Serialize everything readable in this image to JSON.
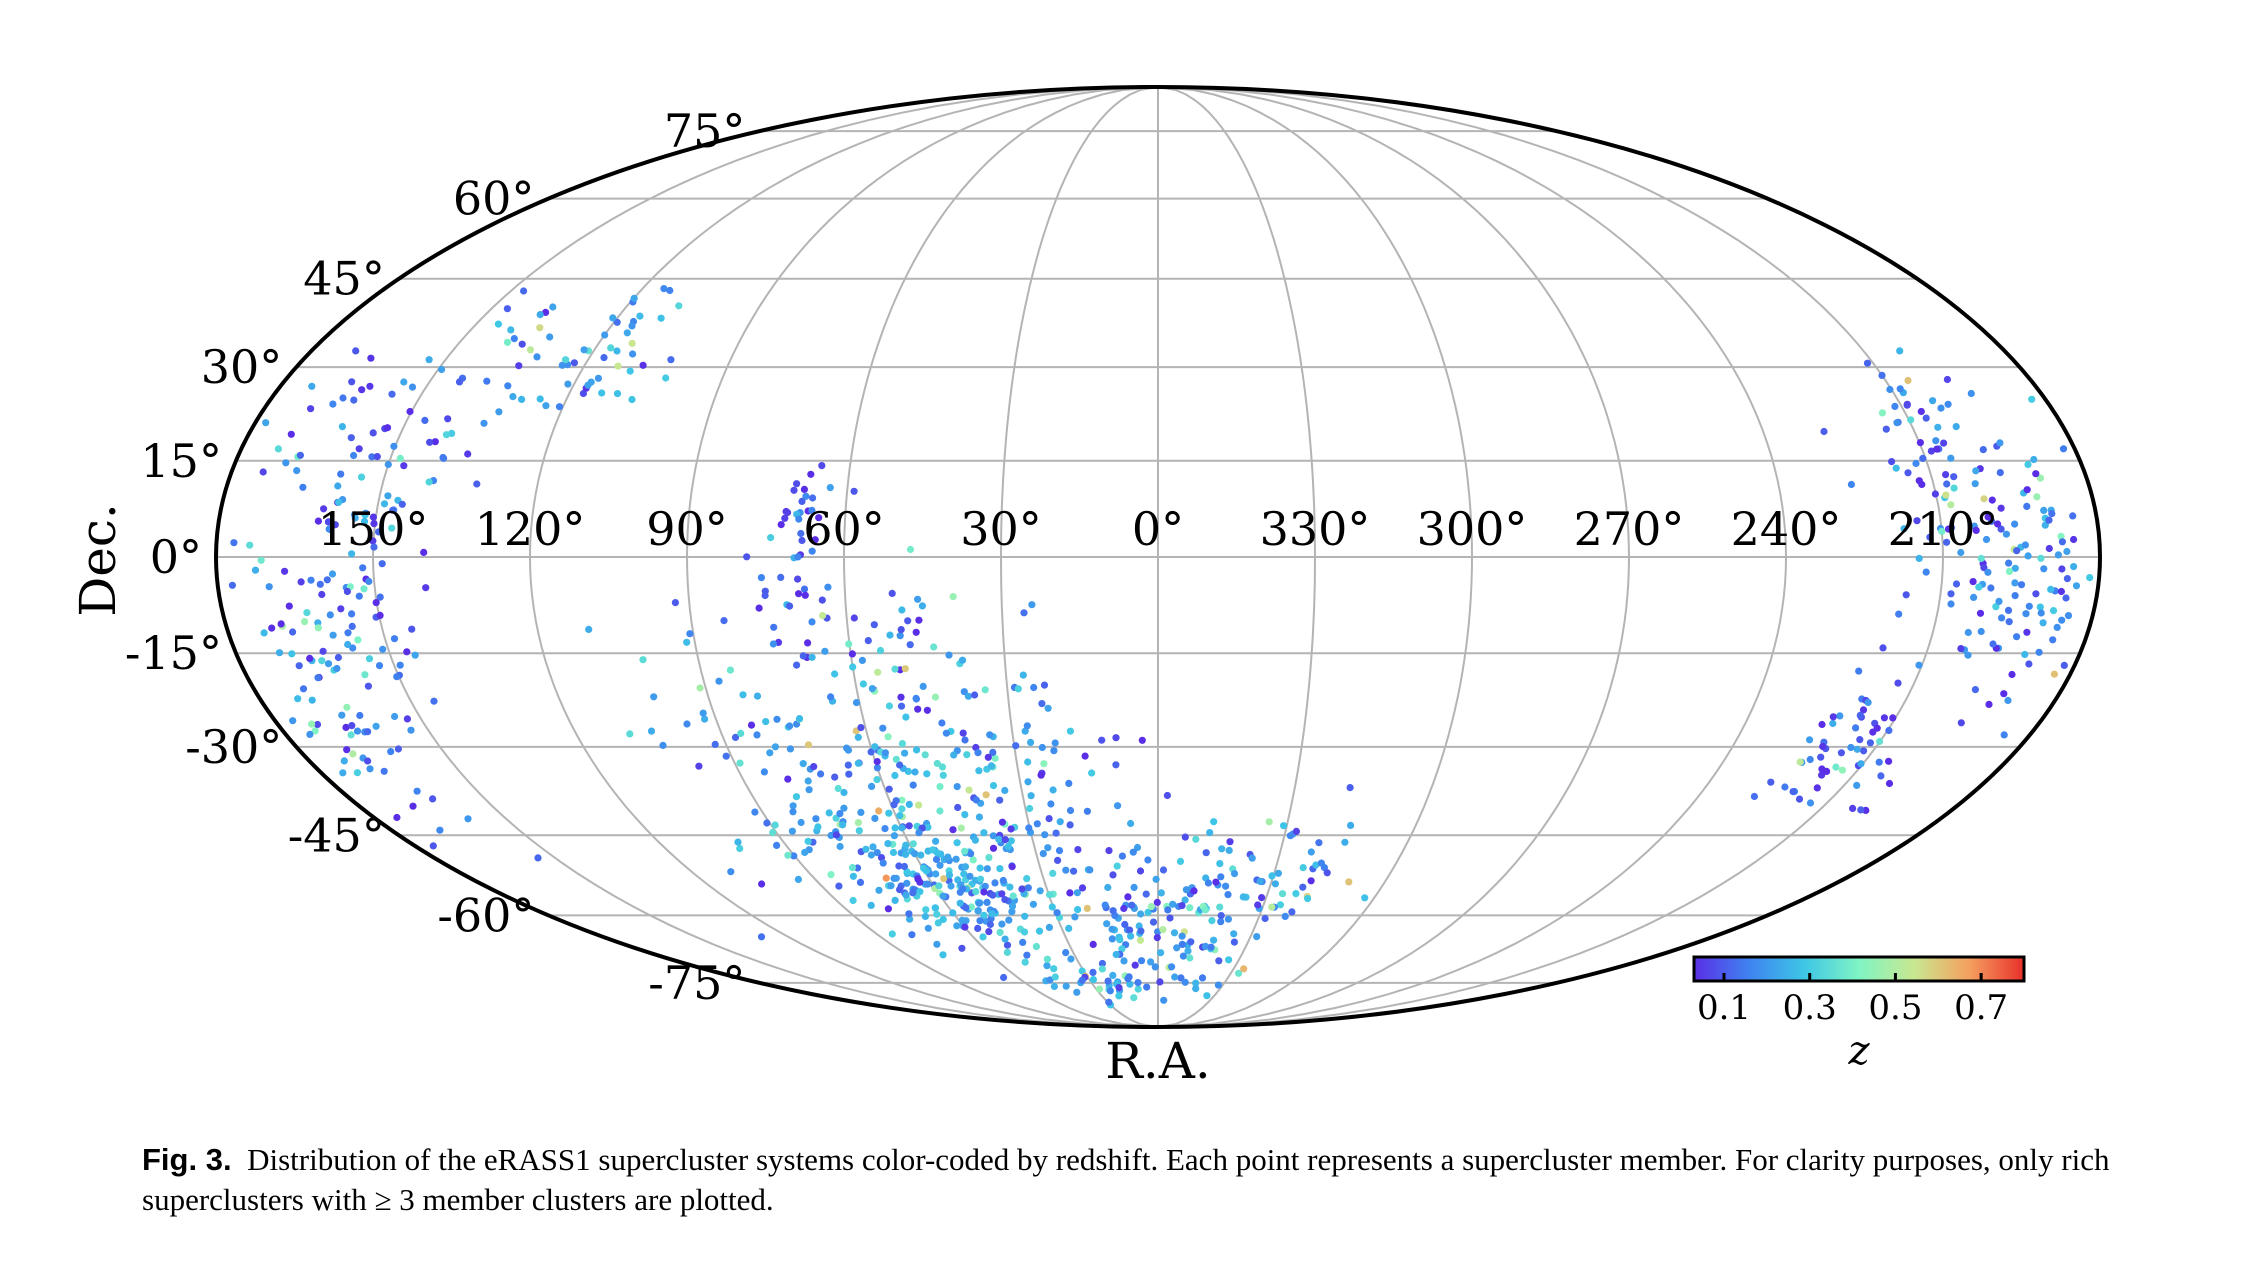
{
  "chart_data": {
    "type": "scatter",
    "projection": "mollweide",
    "xlabel": "R.A.",
    "ylabel": "Dec.",
    "ra_tick_labels": [
      {
        "ra": 150,
        "label": "150°"
      },
      {
        "ra": 120,
        "label": "120°"
      },
      {
        "ra": 90,
        "label": "90°"
      },
      {
        "ra": 60,
        "label": "60°"
      },
      {
        "ra": 30,
        "label": "30°"
      },
      {
        "ra": 0,
        "label": "0°"
      },
      {
        "ra": 330,
        "label": "330°"
      },
      {
        "ra": 300,
        "label": "300°"
      },
      {
        "ra": 270,
        "label": "270°"
      },
      {
        "ra": 240,
        "label": "240°"
      },
      {
        "ra": 210,
        "label": "210°"
      }
    ],
    "dec_tick_labels": [
      {
        "dec": 75,
        "label": "75°"
      },
      {
        "dec": 60,
        "label": "60°"
      },
      {
        "dec": 45,
        "label": "45°"
      },
      {
        "dec": 30,
        "label": "30°"
      },
      {
        "dec": 15,
        "label": "15°"
      },
      {
        "dec": 0,
        "label": "0°"
      },
      {
        "dec": -15,
        "label": "-15°"
      },
      {
        "dec": -30,
        "label": "-30°"
      },
      {
        "dec": -45,
        "label": "-45°"
      },
      {
        "dec": -60,
        "label": "-60°"
      },
      {
        "dec": -75,
        "label": "-75°"
      }
    ],
    "grid": true,
    "colorbar": {
      "label": "z",
      "range": [
        0.03,
        0.8
      ],
      "ticks": [
        {
          "value": 0.1,
          "label": "0.1"
        },
        {
          "value": 0.3,
          "label": "0.3"
        },
        {
          "value": 0.5,
          "label": "0.5"
        },
        {
          "value": 0.7,
          "label": "0.7"
        }
      ],
      "colormap": [
        "#5a2ee6",
        "#3f83f0",
        "#3ec6e6",
        "#80f4c4",
        "#c8e890",
        "#f5a060",
        "#e8302a"
      ],
      "location": "bottom-right"
    },
    "clusters": [
      {
        "ra": 160,
        "dec": 22,
        "dra": 8,
        "ddec": 7,
        "z": 0.12,
        "n": 30
      },
      {
        "ra": 137,
        "dec": 30,
        "dra": 6,
        "ddec": 8,
        "z": 0.18,
        "n": 30
      },
      {
        "ra": 116,
        "dec": 33,
        "dra": 7,
        "ddec": 6,
        "z": 0.2,
        "n": 40
      },
      {
        "ra": 150,
        "dec": 10,
        "dra": 6,
        "ddec": 6,
        "z": 0.18,
        "n": 30
      },
      {
        "ra": 155,
        "dec": -8,
        "dra": 6,
        "ddec": 9,
        "z": 0.15,
        "n": 60
      },
      {
        "ra": 168,
        "dec": -28,
        "dra": 7,
        "ddec": 10,
        "z": 0.16,
        "n": 40
      },
      {
        "ra": 172,
        "dec": -5,
        "dra": 5,
        "ddec": 15,
        "z": 0.14,
        "n": 30
      },
      {
        "ra": 70,
        "dec": 5,
        "dra": 4,
        "ddec": 5,
        "z": 0.12,
        "n": 30
      },
      {
        "ra": 70,
        "dec": -10,
        "dra": 5,
        "ddec": 5,
        "z": 0.12,
        "n": 25
      },
      {
        "ra": 50,
        "dec": -12,
        "dra": 5,
        "ddec": 5,
        "z": 0.13,
        "n": 20
      },
      {
        "ra": 60,
        "dec": -35,
        "dra": 20,
        "ddec": 12,
        "z": 0.22,
        "n": 220
      },
      {
        "ra": 55,
        "dec": -55,
        "dra": 14,
        "ddec": 7,
        "z": 0.22,
        "n": 220
      },
      {
        "ra": 30,
        "dec": -35,
        "dra": 12,
        "ddec": 10,
        "z": 0.16,
        "n": 60
      },
      {
        "ra": 10,
        "dec": -62,
        "dra": 10,
        "ddec": 8,
        "z": 0.16,
        "n": 70
      },
      {
        "ra": 348,
        "dec": -58,
        "dra": 10,
        "ddec": 8,
        "z": 0.2,
        "n": 70
      },
      {
        "ra": 325,
        "dec": -52,
        "dra": 8,
        "ddec": 6,
        "z": 0.18,
        "n": 40
      },
      {
        "ra": 20,
        "dec": -75,
        "dra": 18,
        "ddec": 3,
        "z": 0.2,
        "n": 40
      },
      {
        "ra": 205,
        "dec": 8,
        "dra": 8,
        "ddec": 10,
        "z": 0.16,
        "n": 70
      },
      {
        "ra": 195,
        "dec": -8,
        "dra": 7,
        "ddec": 8,
        "z": 0.15,
        "n": 50
      },
      {
        "ra": 215,
        "dec": -30,
        "dra": 7,
        "ddec": 6,
        "z": 0.1,
        "n": 60
      },
      {
        "ra": 208,
        "dec": 23,
        "dra": 5,
        "ddec": 5,
        "z": 0.16,
        "n": 25
      },
      {
        "ra": 188,
        "dec": 2,
        "dra": 5,
        "ddec": 10,
        "z": 0.14,
        "n": 30
      }
    ]
  },
  "caption": {
    "label": "Fig. 3.",
    "text": "Distribution of the eRASS1 supercluster systems color-coded by redshift. Each point represents a supercluster member. For clarity purposes, only rich superclusters with ≥ 3 member clusters are plotted."
  }
}
